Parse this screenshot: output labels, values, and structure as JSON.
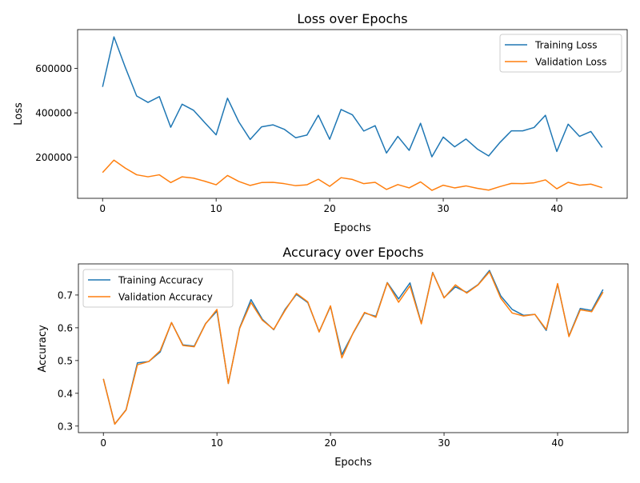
{
  "chart_data": [
    {
      "type": "line",
      "title": "Loss over Epochs",
      "xlabel": "Epochs",
      "ylabel": "Loss",
      "xlim": [
        -2.2,
        46.2
      ],
      "ylim": [
        15000,
        775000
      ],
      "xticks": [
        0,
        10,
        20,
        30,
        40
      ],
      "yticks": [
        200000,
        400000,
        600000
      ],
      "grid": false,
      "legend_position": "top-right",
      "x": [
        0,
        1,
        2,
        3,
        4,
        5,
        6,
        7,
        8,
        9,
        10,
        11,
        12,
        13,
        14,
        15,
        16,
        17,
        18,
        19,
        20,
        21,
        22,
        23,
        24,
        25,
        26,
        27,
        28,
        29,
        30,
        31,
        32,
        33,
        34,
        35,
        36,
        37,
        38,
        39,
        40,
        41,
        42,
        43,
        44
      ],
      "series": [
        {
          "name": "Training Loss",
          "color": "#1f77b4",
          "values": [
            517000,
            742000,
            605000,
            476000,
            447000,
            473000,
            335000,
            439000,
            412000,
            356000,
            301000,
            466000,
            359000,
            280000,
            337000,
            346000,
            326000,
            288000,
            300000,
            389000,
            281000,
            415000,
            391000,
            318000,
            342000,
            219000,
            294000,
            231000,
            353000,
            202000,
            291000,
            247000,
            282000,
            237000,
            206000,
            267000,
            319000,
            319000,
            334000,
            389000,
            226000,
            349000,
            294000,
            316000,
            244000
          ]
        },
        {
          "name": "Validation Loss",
          "color": "#ff7f0e",
          "values": [
            131000,
            187000,
            151000,
            121000,
            112000,
            121000,
            86000,
            112000,
            106000,
            92000,
            76000,
            118000,
            91000,
            73000,
            86000,
            87000,
            81000,
            72000,
            76000,
            101000,
            69000,
            108000,
            100000,
            81000,
            87000,
            55000,
            77000,
            62000,
            89000,
            51000,
            74000,
            62000,
            71000,
            60000,
            52000,
            68000,
            82000,
            81000,
            85000,
            98000,
            58000,
            87000,
            74000,
            79000,
            63000
          ]
        }
      ]
    },
    {
      "type": "line",
      "title": "Accuracy over Epochs",
      "xlabel": "Epochs",
      "ylabel": "Accuracy",
      "xlim": [
        -2.2,
        46.2
      ],
      "ylim": [
        0.28,
        0.795
      ],
      "xticks": [
        0,
        10,
        20,
        30,
        40
      ],
      "yticks": [
        0.3,
        0.4,
        0.5,
        0.6,
        0.7
      ],
      "ytick_labels": [
        "0.3",
        "0.4",
        "0.5",
        "0.6",
        "0.7"
      ],
      "grid": false,
      "legend_position": "top-left",
      "x": [
        0,
        1,
        2,
        3,
        4,
        5,
        6,
        7,
        8,
        9,
        10,
        11,
        12,
        13,
        14,
        15,
        16,
        17,
        18,
        19,
        20,
        21,
        22,
        23,
        24,
        25,
        26,
        27,
        28,
        29,
        30,
        31,
        32,
        33,
        34,
        35,
        36,
        37,
        38,
        39,
        40,
        41,
        42,
        43,
        44
      ],
      "series": [
        {
          "name": "Training Accuracy",
          "color": "#1f77b4",
          "values": [
            0.444,
            0.306,
            0.35,
            0.493,
            0.497,
            0.526,
            0.616,
            0.548,
            0.544,
            0.613,
            0.651,
            0.43,
            0.6,
            0.686,
            0.626,
            0.594,
            0.656,
            0.702,
            0.677,
            0.588,
            0.665,
            0.518,
            0.584,
            0.645,
            0.635,
            0.738,
            0.688,
            0.737,
            0.614,
            0.769,
            0.692,
            0.725,
            0.708,
            0.732,
            0.775,
            0.697,
            0.656,
            0.638,
            0.641,
            0.592,
            0.733,
            0.575,
            0.659,
            0.653,
            0.717
          ]
        },
        {
          "name": "Validation Accuracy",
          "color": "#ff7f0e",
          "values": [
            0.444,
            0.306,
            0.349,
            0.487,
            0.497,
            0.53,
            0.616,
            0.546,
            0.542,
            0.612,
            0.656,
            0.43,
            0.598,
            0.677,
            0.623,
            0.595,
            0.653,
            0.705,
            0.679,
            0.587,
            0.667,
            0.508,
            0.585,
            0.647,
            0.632,
            0.737,
            0.678,
            0.728,
            0.612,
            0.768,
            0.691,
            0.731,
            0.706,
            0.731,
            0.771,
            0.69,
            0.645,
            0.636,
            0.641,
            0.595,
            0.735,
            0.573,
            0.655,
            0.649,
            0.709
          ]
        }
      ]
    }
  ]
}
